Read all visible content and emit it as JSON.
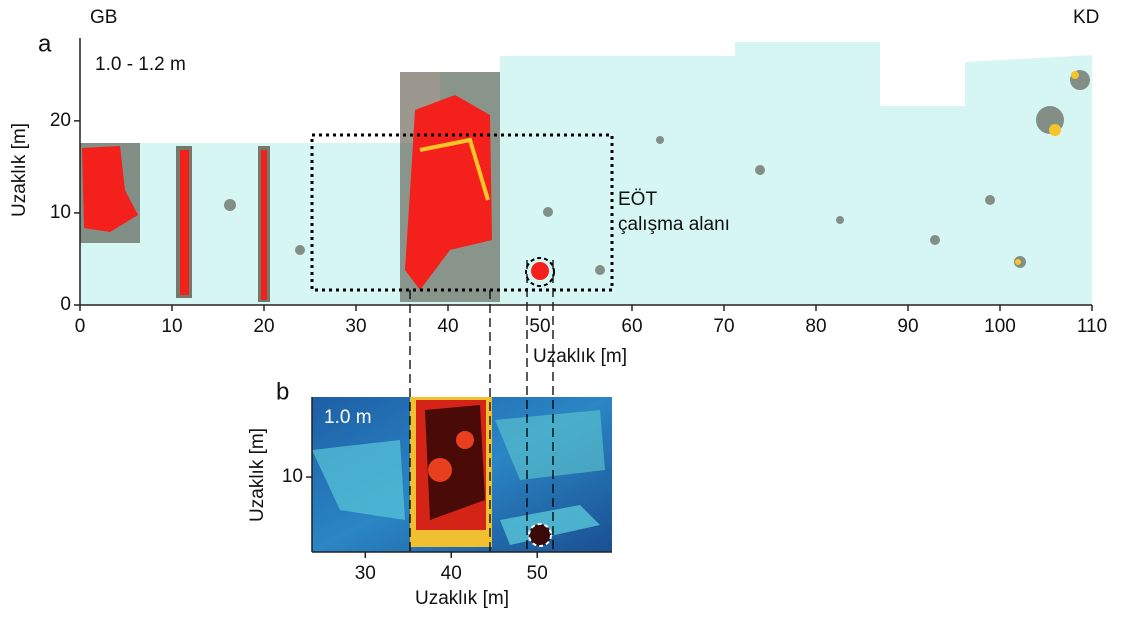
{
  "chart_data": [
    {
      "type": "map",
      "panel_label": "a",
      "corner_left": "GB",
      "corner_right": "KD",
      "depth_label": "1.0 - 1.2 m",
      "annotation": [
        "EÖT",
        "çalışma alanı"
      ],
      "xlabel": "Uzaklık [m]",
      "ylabel": "Uzaklık [m]",
      "xlim": [
        0,
        110
      ],
      "ylim": [
        0,
        29
      ],
      "xticks": [
        0,
        10,
        20,
        30,
        40,
        50,
        60,
        70,
        80,
        90,
        100,
        110
      ],
      "yticks": [
        0,
        10,
        20
      ]
    },
    {
      "type": "map",
      "panel_label": "b",
      "depth_label": "1.0 m",
      "xlabel": "Uzaklık [m]",
      "ylabel": "Uzaklık [m]",
      "xlim": [
        23.8,
        58.7
      ],
      "ylim": [
        1.3,
        19.3
      ],
      "xticks": [
        30,
        40,
        50
      ],
      "yticks": [
        10
      ]
    }
  ]
}
